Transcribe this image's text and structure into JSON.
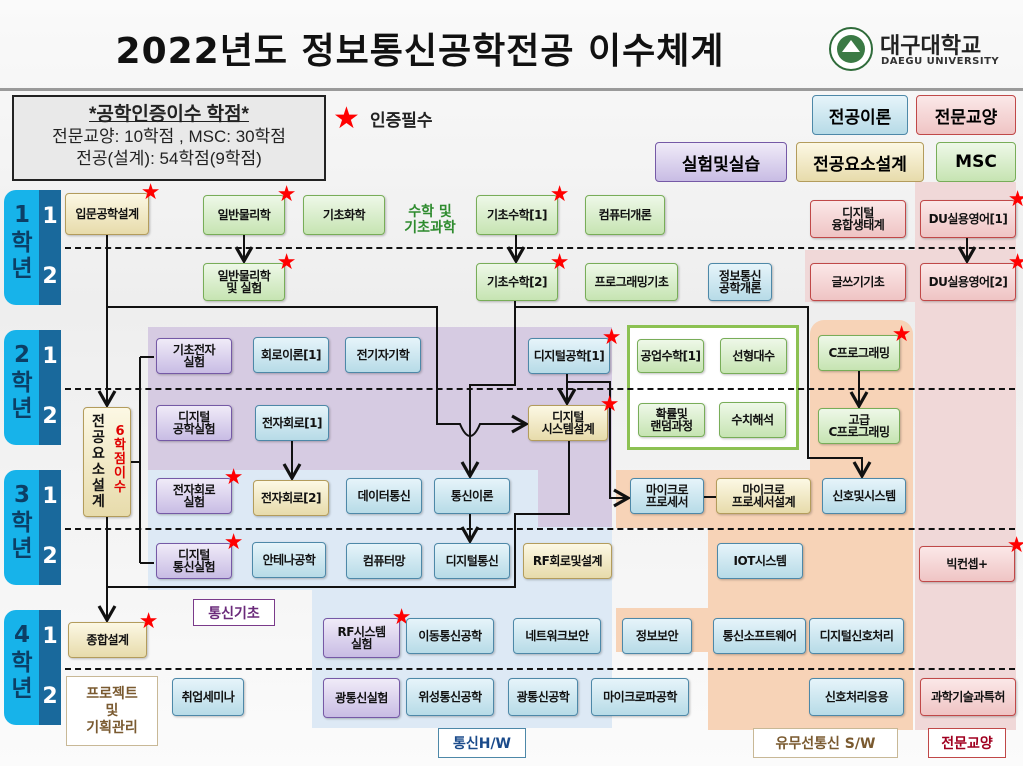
{
  "title": "2022년도 정보통신공학전공 이수체계",
  "logo": {
    "name_ko": "대구대학교",
    "name_en": "DAEGU UNIVERSITY"
  },
  "credits_box": {
    "heading": "*공학인증이수 학점*",
    "line1": "전문교양: 10학점 , MSC: 30학점",
    "line2": "전공(설계): 54학점(9학점)"
  },
  "certification_legend": {
    "icon": "star-icon",
    "label": "인증필수",
    "color": "#ff0000"
  },
  "legend": {
    "theory": "전공이론",
    "liberal": "전문교양",
    "lab": "실험및실습",
    "design": "전공요소설계",
    "msc": "MSC"
  },
  "colors": {
    "theory": "#b7dbe7",
    "liberal": "#efc4c4",
    "lab": "#c8bce4",
    "design": "#e7dbab",
    "msc": "#c6e4b2",
    "star": "#ff0000",
    "year_label": "#17b3ea",
    "semester_label": "#19699c"
  },
  "years": [
    {
      "year": "1",
      "label": "학\n년",
      "semesters": [
        "1",
        "2"
      ]
    },
    {
      "year": "2",
      "label": "학\n년",
      "semesters": [
        "1",
        "2"
      ]
    },
    {
      "year": "3",
      "label": "학\n년",
      "semesters": [
        "1",
        "2"
      ]
    },
    {
      "year": "4",
      "label": "학\n년",
      "semesters": [
        "1",
        "2"
      ]
    }
  ],
  "group_labels": {
    "math_science": "수학 및\n기초과학",
    "comm_basics": "통신기초",
    "comm_hw": "통신H/W",
    "comm_sw": "유무선통신 S/W",
    "liberal": "전문교양",
    "project": "프로젝트\n및\n기획관리",
    "design_note": "6학점이수"
  },
  "courses": [
    {
      "name": "입문공학설계",
      "type": "design",
      "required": true
    },
    {
      "name": "일반물리학",
      "type": "msc",
      "required": true
    },
    {
      "name": "기초화학",
      "type": "msc",
      "required": false
    },
    {
      "name": "기초수학[1]",
      "type": "msc",
      "required": true
    },
    {
      "name": "컴퓨터개론",
      "type": "msc",
      "required": false
    },
    {
      "name": "디지털\n융합생태계",
      "type": "liberal",
      "required": false
    },
    {
      "name": "DU실용영어[1]",
      "type": "liberal",
      "required": true
    },
    {
      "name": "일반물리학\n및 실험",
      "type": "msc",
      "required": true
    },
    {
      "name": "기초수학[2]",
      "type": "msc",
      "required": true
    },
    {
      "name": "프로그래밍기초",
      "type": "msc",
      "required": false
    },
    {
      "name": "정보통신\n공학개론",
      "type": "theory",
      "required": false
    },
    {
      "name": "글쓰기기초",
      "type": "liberal",
      "required": false
    },
    {
      "name": "DU실용영어[2]",
      "type": "liberal",
      "required": true
    },
    {
      "name": "기초전자\n실험",
      "type": "lab",
      "required": false
    },
    {
      "name": "회로이론[1]",
      "type": "theory",
      "required": false
    },
    {
      "name": "전기자기학",
      "type": "theory",
      "required": false
    },
    {
      "name": "디지털공학[1]",
      "type": "theory",
      "required": true
    },
    {
      "name": "공업수학[1]",
      "type": "msc",
      "required": false
    },
    {
      "name": "선형대수",
      "type": "msc",
      "required": false
    },
    {
      "name": "C프로그래밍",
      "type": "msc",
      "required": true
    },
    {
      "name": "디지털\n공학실험",
      "type": "lab",
      "required": false
    },
    {
      "name": "전자회로[1]",
      "type": "theory",
      "required": false
    },
    {
      "name": "디지털\n시스템설계",
      "type": "design",
      "required": true
    },
    {
      "name": "확률및\n랜덤과정",
      "type": "msc",
      "required": false
    },
    {
      "name": "수치해석",
      "type": "msc",
      "required": false
    },
    {
      "name": "고급\nC프로그래밍",
      "type": "msc",
      "required": false
    },
    {
      "name": "전\n공\n요\n소\n설\n계",
      "type": "design",
      "required": false
    },
    {
      "name": "전자회로\n실험",
      "type": "lab",
      "required": true
    },
    {
      "name": "전자회로[2]",
      "type": "design",
      "required": false
    },
    {
      "name": "데이터통신",
      "type": "theory",
      "required": false
    },
    {
      "name": "통신이론",
      "type": "theory",
      "required": false
    },
    {
      "name": "마이크로\n프로세서",
      "type": "theory",
      "required": false
    },
    {
      "name": "마이크로\n프로세서설계",
      "type": "design",
      "required": false
    },
    {
      "name": "신호및시스템",
      "type": "theory",
      "required": false
    },
    {
      "name": "디지털\n통신실험",
      "type": "lab",
      "required": true
    },
    {
      "name": "안테나공학",
      "type": "theory",
      "required": false
    },
    {
      "name": "컴퓨터망",
      "type": "theory",
      "required": false
    },
    {
      "name": "디지털통신",
      "type": "theory",
      "required": false
    },
    {
      "name": "RF회로및설계",
      "type": "design",
      "required": false
    },
    {
      "name": "IOT시스템",
      "type": "theory",
      "required": false
    },
    {
      "name": "빅컨셉+",
      "type": "liberal",
      "required": true
    },
    {
      "name": "종합설계",
      "type": "design",
      "required": true
    },
    {
      "name": "RF시스템\n실험",
      "type": "lab",
      "required": true
    },
    {
      "name": "이동통신공학",
      "type": "theory",
      "required": false
    },
    {
      "name": "네트워크보안",
      "type": "theory",
      "required": false
    },
    {
      "name": "정보보안",
      "type": "theory",
      "required": false
    },
    {
      "name": "통신소프트웨어",
      "type": "theory",
      "required": false
    },
    {
      "name": "디지털신호처리",
      "type": "theory",
      "required": false
    },
    {
      "name": "취업세미나",
      "type": "theory",
      "required": false
    },
    {
      "name": "광통신실험",
      "type": "lab",
      "required": false
    },
    {
      "name": "위성통신공학",
      "type": "theory",
      "required": false
    },
    {
      "name": "광통신공학",
      "type": "theory",
      "required": false
    },
    {
      "name": "마이크로파공학",
      "type": "theory",
      "required": false
    },
    {
      "name": "신호처리응용",
      "type": "theory",
      "required": false
    },
    {
      "name": "과학기술과특허",
      "type": "liberal",
      "required": false
    }
  ]
}
